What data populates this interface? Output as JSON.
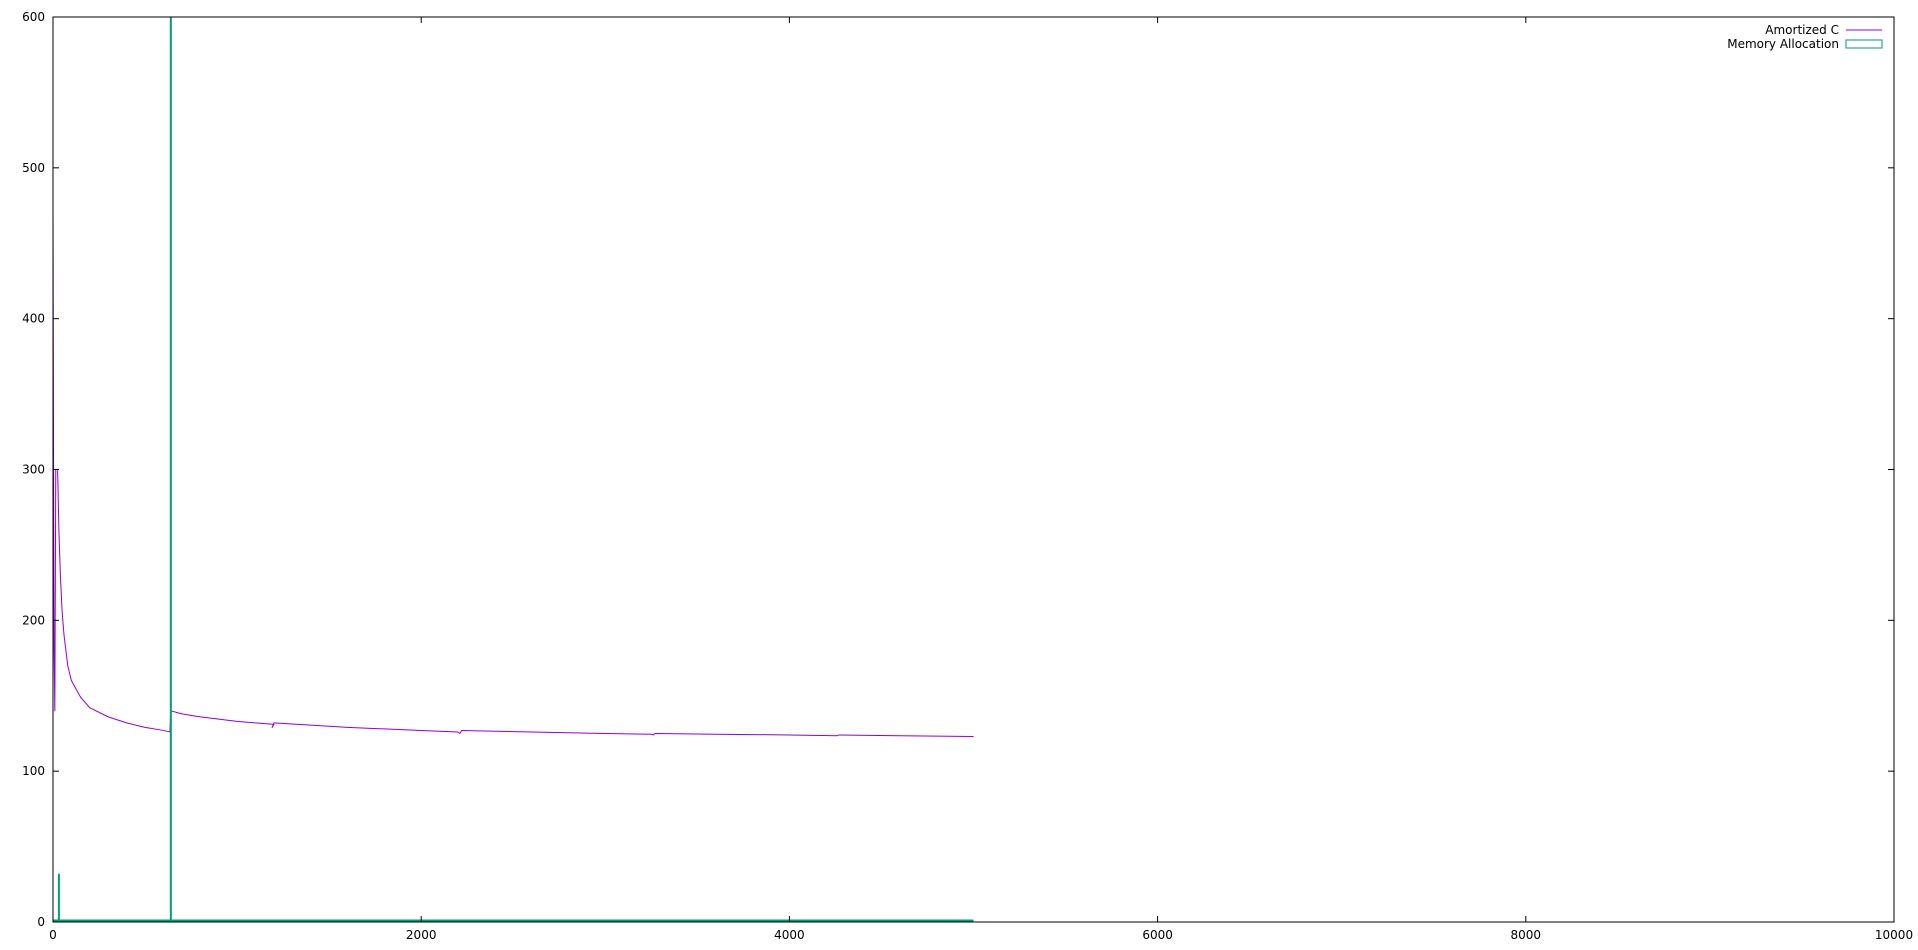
{
  "chart_data": {
    "type": "line",
    "title": "",
    "xlabel": "",
    "ylabel": "",
    "xlim": [
      0,
      10000
    ],
    "ylim": [
      0,
      600
    ],
    "x_ticks": [
      0,
      2000,
      4000,
      6000,
      8000,
      10000
    ],
    "x_tick_labels": [
      "0",
      "2000",
      "4000",
      "6000",
      "8000",
      "10000"
    ],
    "y_ticks": [
      0,
      100,
      200,
      300,
      400,
      500,
      600
    ],
    "y_tick_labels": [
      "0",
      "100",
      "200",
      "300",
      "400",
      "500",
      "600"
    ],
    "grid": false,
    "legend_position": "top-right",
    "series": [
      {
        "name": "Amortized C",
        "kind": "line",
        "color": "#9400d3",
        "points": [
          [
            0,
            470
          ],
          [
            3,
            300
          ],
          [
            6,
            180
          ],
          [
            10,
            140
          ],
          [
            15,
            300
          ],
          [
            25,
            300
          ],
          [
            32,
            260
          ],
          [
            40,
            230
          ],
          [
            50,
            205
          ],
          [
            60,
            190
          ],
          [
            80,
            170
          ],
          [
            100,
            160
          ],
          [
            150,
            149
          ],
          [
            200,
            142
          ],
          [
            300,
            136
          ],
          [
            400,
            132
          ],
          [
            500,
            129
          ],
          [
            600,
            127
          ],
          [
            635,
            126
          ],
          [
            640,
            140
          ],
          [
            700,
            138
          ],
          [
            800,
            136
          ],
          [
            900,
            134.5
          ],
          [
            1000,
            133
          ],
          [
            1100,
            132
          ],
          [
            1200,
            131
          ],
          [
            1190,
            129
          ],
          [
            1200,
            132
          ],
          [
            1400,
            130.5
          ],
          [
            1600,
            129
          ],
          [
            1800,
            128
          ],
          [
            2000,
            127
          ],
          [
            2200,
            126
          ],
          [
            2210,
            125
          ],
          [
            2220,
            127
          ],
          [
            2600,
            126
          ],
          [
            3000,
            125
          ],
          [
            3250,
            124.5
          ],
          [
            3260,
            124
          ],
          [
            3270,
            125
          ],
          [
            3600,
            124.5
          ],
          [
            4000,
            124
          ],
          [
            4260,
            123.5
          ],
          [
            4270,
            124
          ],
          [
            4600,
            123.5
          ],
          [
            5000,
            123
          ]
        ]
      },
      {
        "name": "Memory Allocation",
        "kind": "impulses",
        "color": "#009e73",
        "points": [
          [
            5,
            1
          ],
          [
            32,
            32
          ],
          [
            640,
            600
          ]
        ],
        "baseline_extent": [
          0,
          5000
        ],
        "baseline_value": 1
      }
    ]
  }
}
